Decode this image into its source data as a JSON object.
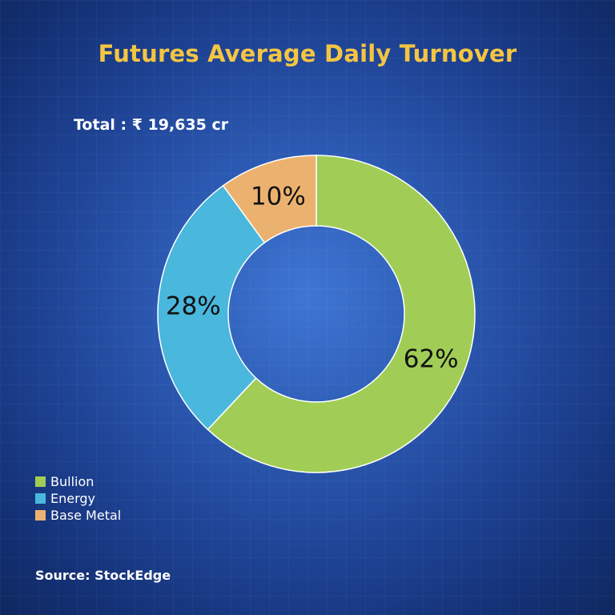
{
  "title": "Futures Average Daily Turnover",
  "total": "Total : ₹ 19,635 cr",
  "source": "Source: StockEdge",
  "colors": {
    "title": "#f4c542",
    "bullion": "#a1cd56",
    "energy": "#4ab7dd",
    "base_metal": "#ebb26f",
    "slice_border": "#ffffff"
  },
  "chart_data": {
    "type": "pie",
    "style": "donut",
    "title": "Futures Average Daily Turnover",
    "categories": [
      "Bullion",
      "Energy",
      "Base Metal"
    ],
    "values": [
      62,
      28,
      10
    ],
    "value_labels": [
      "62%",
      "28%",
      "10%"
    ],
    "colors": [
      "#a1cd56",
      "#4ab7dd",
      "#ebb26f"
    ],
    "legend_position": "bottom-left"
  },
  "legend": [
    {
      "label": "Bullion",
      "color": "#a1cd56"
    },
    {
      "label": "Energy",
      "color": "#4ab7dd"
    },
    {
      "label": "Base Metal",
      "color": "#ebb26f"
    }
  ]
}
